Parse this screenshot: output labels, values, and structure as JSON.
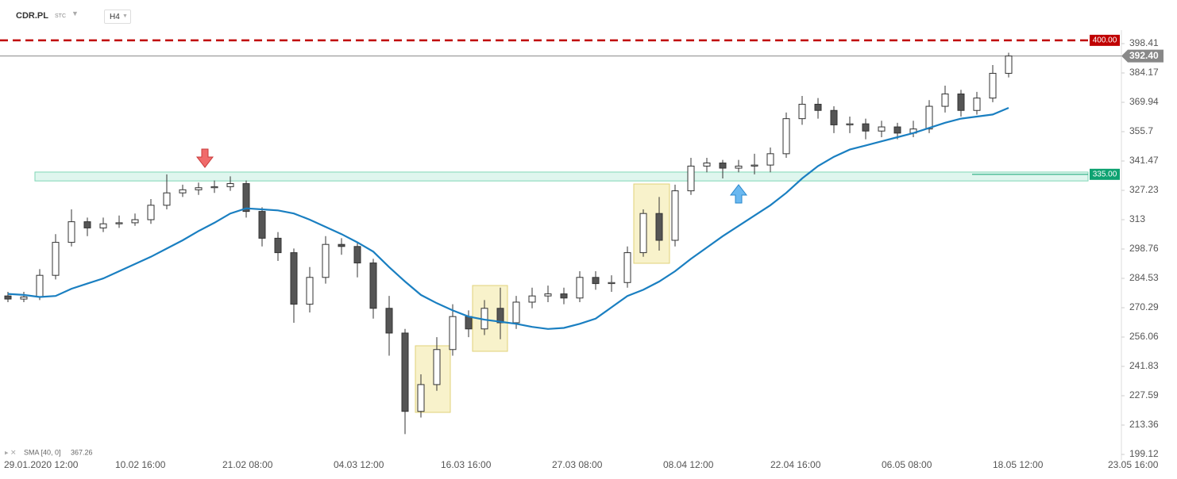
{
  "chart_data": {
    "type": "candlestick",
    "symbol": "CDR.PL",
    "exchange": "STC",
    "interval": "H4",
    "xlim": [
      -0.5,
      70
    ],
    "xticks": [
      {
        "value": -0.25,
        "label": "29.01.2020 12:00"
      },
      {
        "value": 6.75,
        "label": "10.02 16:00"
      },
      {
        "value": 13.5,
        "label": "21.02 08:00"
      },
      {
        "value": 20.5,
        "label": "04.03 12:00"
      },
      {
        "value": 27.25,
        "label": "16.03 16:00"
      },
      {
        "value": 34.25,
        "label": "27.03 08:00"
      },
      {
        "value": 41.25,
        "label": "08.04 12:00"
      },
      {
        "value": 48,
        "label": "22.04 16:00"
      },
      {
        "value": 55,
        "label": "06.05 08:00"
      },
      {
        "value": 62,
        "label": "18.05 12:00"
      },
      {
        "value": 69.25,
        "label": "23.05 16:00"
      }
    ],
    "ylim": [
      196.43,
      404.95
    ],
    "yticks": [
      {
        "value": 199.12,
        "label": "199.12"
      },
      213.36,
      227.59,
      241.83,
      256.06,
      270.29,
      284.53,
      298.76,
      313,
      327.23,
      341.47,
      355.7,
      369.94,
      384.17,
      398.41
    ],
    "ohlc": {
      "open": [
        276,
        274.5,
        275.5,
        286,
        302,
        312,
        309,
        311,
        311.5,
        313,
        320,
        326,
        327.5,
        328.5,
        329,
        330.5,
        317,
        304,
        297,
        272,
        285,
        301,
        300,
        292,
        270,
        258,
        220,
        233,
        250,
        266,
        260,
        270,
        263,
        273,
        276,
        277,
        275,
        285,
        282,
        282.5,
        297,
        316,
        303,
        327,
        339,
        340.5,
        338,
        339,
        339.5,
        345,
        362,
        369,
        366,
        359,
        359.5,
        356,
        358,
        355,
        357,
        368,
        374,
        366,
        372,
        384
      ],
      "high": [
        278,
        278,
        289,
        306,
        318,
        314,
        314,
        315,
        316,
        323,
        335,
        330,
        331,
        332,
        334,
        332,
        319,
        307,
        299,
        290,
        305,
        304,
        302,
        294,
        276,
        260,
        238,
        256,
        272,
        269,
        274,
        280,
        276,
        280,
        281,
        280,
        288,
        288,
        286,
        300,
        318,
        324,
        330,
        343,
        343,
        342,
        342,
        345,
        348,
        365,
        373,
        372,
        368,
        363,
        362,
        361,
        360,
        361,
        371,
        378,
        376,
        375,
        388,
        394
      ],
      "low": [
        273,
        273,
        274,
        284,
        300,
        305,
        307,
        309,
        310,
        311,
        318,
        324,
        325,
        326,
        327,
        314,
        300,
        293,
        263,
        268,
        282,
        296,
        285,
        265,
        247,
        209,
        217,
        230,
        247,
        256,
        257,
        255,
        260,
        270,
        273,
        272,
        273,
        279,
        278,
        280,
        295,
        298,
        300,
        325,
        336,
        333,
        336,
        335,
        336,
        343,
        359,
        362,
        355,
        355,
        352,
        353,
        352,
        353,
        355,
        365,
        363,
        364,
        370,
        382
      ],
      "close": [
        274.5,
        275.5,
        286,
        302,
        312,
        309,
        311,
        311.5,
        313,
        320,
        326,
        327.5,
        328.5,
        329,
        330.5,
        317,
        304,
        297,
        272,
        285,
        301,
        300,
        292,
        270,
        258,
        220,
        233,
        250,
        266,
        260,
        270,
        263,
        273,
        276,
        277,
        275,
        285,
        282,
        282.5,
        297,
        316,
        303,
        327,
        339,
        340.5,
        338,
        339,
        339.5,
        345,
        362,
        369,
        366,
        359,
        359.5,
        356,
        358,
        355,
        357,
        368,
        374,
        366,
        372,
        384,
        392.4
      ]
    },
    "up_color": "#ffffff",
    "down_color": "#555555",
    "sma": {
      "name": "SMA [40, 0]",
      "color": "#1a7fc1",
      "values": [
        277,
        276.5,
        275.5,
        276,
        279.5,
        282,
        284.5,
        288,
        291.5,
        295,
        299,
        303,
        307.5,
        311.5,
        316,
        318.5,
        318,
        317.5,
        316,
        313,
        309.5,
        306,
        302,
        297.5,
        290,
        283,
        276.5,
        272.5,
        269,
        266,
        264.5,
        263.5,
        262.5,
        261,
        260,
        260.5,
        262.5,
        265,
        270.5,
        276,
        279,
        283,
        288,
        294,
        299.5,
        305,
        310,
        315,
        320,
        326,
        333,
        339,
        343.5,
        347,
        349,
        351,
        353,
        355,
        357.5,
        360,
        362,
        363,
        364,
        367.26
      ]
    },
    "levels": [
      {
        "value": 400,
        "label": "400.00",
        "color": "#c00000",
        "style": "dashed"
      },
      {
        "value": 392.4,
        "label": "392.40",
        "color": "#888888",
        "style": "current"
      },
      {
        "value": 335,
        "label": "335.00",
        "color": "#0ea271",
        "style": "zone"
      }
    ],
    "zone": [
      331.8,
      336.1
    ]
  }
}
